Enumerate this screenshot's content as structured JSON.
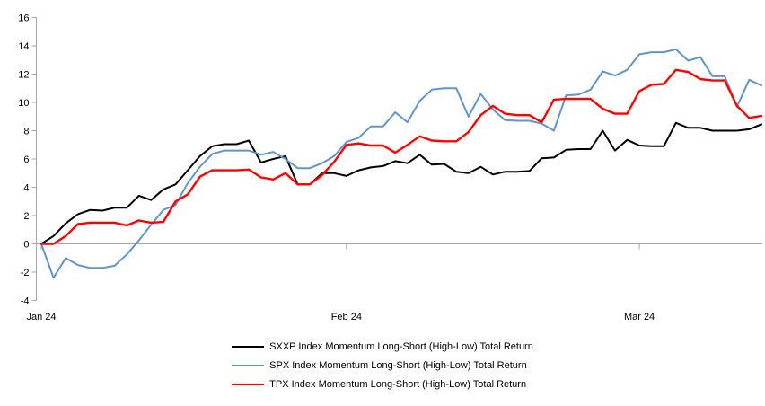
{
  "chart_data": {
    "type": "line",
    "title": "",
    "xlabel": "",
    "ylabel": "",
    "grid": "zero-line-only",
    "legend_position": "bottom-center",
    "axis_color": "#A6A6A6",
    "y_axis": {
      "min": -4,
      "max": 16,
      "tick_step": 2,
      "ticks": [
        16,
        14,
        12,
        10,
        8,
        6,
        4,
        2,
        0,
        -2,
        -4
      ]
    },
    "x_axis": {
      "tick_labels": [
        {
          "label": "Jan 24",
          "index": 0
        },
        {
          "label": "Feb 24",
          "index": 25
        },
        {
          "label": "Mar 24",
          "index": 49
        }
      ]
    },
    "series": [
      {
        "name": "SXXP Index Momentum Long-Short (High-Low) Total Return",
        "color": "#000000",
        "stroke_width": 2,
        "values": [
          0,
          0.55,
          1.45,
          2.1,
          2.4,
          2.35,
          2.55,
          2.55,
          3.4,
          3.1,
          3.85,
          4.2,
          5.2,
          6.2,
          6.9,
          7.05,
          7.05,
          7.3,
          5.75,
          6.0,
          6.2,
          4.2,
          4.2,
          5.0,
          5.0,
          4.8,
          5.2,
          5.4,
          5.5,
          5.85,
          5.7,
          6.3,
          5.6,
          5.65,
          5.1,
          5.0,
          5.45,
          4.9,
          5.1,
          5.1,
          5.15,
          6.05,
          6.1,
          6.65,
          6.7,
          6.7,
          8.0,
          6.6,
          7.35,
          6.95,
          6.9,
          6.9,
          8.55,
          8.2,
          8.2,
          8.0,
          8.0,
          8.0,
          8.1,
          8.45
        ]
      },
      {
        "name": "SPX Index Momentum Long-Short (High-Low) Total Return",
        "color": "#6295C7",
        "stroke_width": 2,
        "values": [
          0,
          -2.4,
          -1.0,
          -1.5,
          -1.7,
          -1.7,
          -1.55,
          -0.75,
          0.25,
          1.35,
          2.4,
          2.75,
          4.3,
          5.45,
          6.35,
          6.6,
          6.6,
          6.6,
          6.3,
          6.5,
          6.0,
          5.35,
          5.35,
          5.7,
          6.2,
          7.2,
          7.5,
          8.3,
          8.3,
          9.3,
          8.6,
          10.1,
          10.9,
          11.0,
          11.0,
          9.0,
          10.6,
          9.5,
          8.75,
          8.7,
          8.7,
          8.5,
          8.0,
          10.5,
          10.55,
          10.9,
          12.2,
          11.9,
          12.3,
          13.4,
          13.55,
          13.55,
          13.75,
          12.95,
          13.2,
          11.85,
          11.85,
          9.7,
          11.6,
          11.2
        ]
      },
      {
        "name": "TPX Index Momentum Long-Short (High-Low) Total Return",
        "color": "#FF0000",
        "stroke_width": 2.4,
        "values": [
          0,
          0,
          0.55,
          1.4,
          1.5,
          1.5,
          1.5,
          1.3,
          1.65,
          1.5,
          1.55,
          3.0,
          3.5,
          4.75,
          5.2,
          5.2,
          5.2,
          5.25,
          4.7,
          4.55,
          5.0,
          4.2,
          4.2,
          4.85,
          5.8,
          7.0,
          7.1,
          6.95,
          6.95,
          6.45,
          7.0,
          7.6,
          7.3,
          7.25,
          7.25,
          7.9,
          9.1,
          9.75,
          9.2,
          9.1,
          9.1,
          8.6,
          10.2,
          10.25,
          10.25,
          10.25,
          9.55,
          9.2,
          9.2,
          10.8,
          11.25,
          11.3,
          12.3,
          12.15,
          11.65,
          11.55,
          11.55,
          9.75,
          8.9,
          9.05
        ]
      }
    ]
  }
}
